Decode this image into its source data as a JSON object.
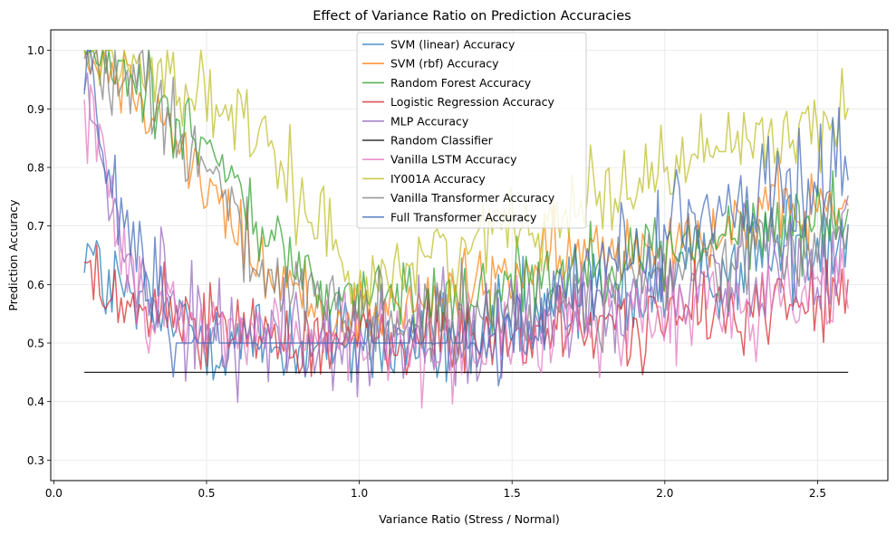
{
  "chart_data": {
    "type": "line",
    "title": "Effect of Variance Ratio on Prediction Accuracies",
    "xlabel": "Variance Ratio (Stress / Normal)",
    "ylabel": "Prediction Accuracy",
    "xlim": [
      -0.01,
      2.73
    ],
    "ylim": [
      0.265,
      1.035
    ],
    "xticks": [
      0.0,
      0.5,
      1.0,
      1.5,
      2.0,
      2.5
    ],
    "xtick_labels": [
      "0.0",
      "0.5",
      "1.0",
      "1.5",
      "2.0",
      "2.5"
    ],
    "yticks": [
      0.3,
      0.4,
      0.5,
      0.6,
      0.7,
      0.8,
      0.9,
      1.0
    ],
    "ytick_labels": [
      "0.3",
      "0.4",
      "0.5",
      "0.6",
      "0.7",
      "0.8",
      "0.9",
      "1.0"
    ],
    "grid": true,
    "legend_position": "top-center",
    "x_range": [
      0.1,
      2.6
    ],
    "points_per_series": 250,
    "series": [
      {
        "name": "SVM (linear) Accuracy",
        "color": "#1f77b4",
        "values": []
      },
      {
        "name": "SVM (rbf) Accuracy",
        "color": "#ff7f0e",
        "values": []
      },
      {
        "name": "Random Forest Accuracy",
        "color": "#2ca02c",
        "values": []
      },
      {
        "name": "Logistic Regression Accuracy",
        "color": "#d62728",
        "values": []
      },
      {
        "name": "MLP Accuracy",
        "color": "#9467bd",
        "values": []
      },
      {
        "name": "Random Classifier",
        "color": "#000000",
        "values": []
      },
      {
        "name": "Vanilla LSTM Accuracy",
        "color": "#e377c2",
        "values": []
      },
      {
        "name": "IY001A Accuracy",
        "color": "#bcbd22",
        "values": []
      },
      {
        "name": "Vanilla Transformer Accuracy",
        "color": "#7f7f7f",
        "values": []
      },
      {
        "name": "Full Transformer Accuracy",
        "color": "#4169b8",
        "values": []
      }
    ]
  }
}
